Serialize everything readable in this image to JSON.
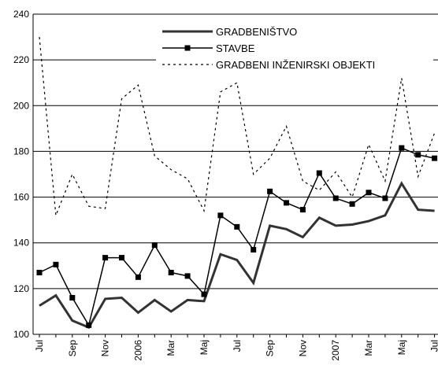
{
  "chart_data": {
    "type": "line",
    "categories": [
      "Jul",
      null,
      "Sep",
      null,
      "Nov",
      null,
      "2006",
      null,
      "Mar",
      null,
      "Maj",
      null,
      "Jul",
      null,
      "Sep",
      null,
      "Nov",
      null,
      "2007",
      null,
      "Mar",
      null,
      "Maj",
      null,
      "Jul"
    ],
    "series": [
      {
        "name": "GRADBENIŠTVO",
        "color": "#333333",
        "linewidth": 3,
        "marker": null,
        "dash": null,
        "values": [
          112.5,
          117,
          106,
          103,
          115.5,
          116,
          109.5,
          115,
          110,
          115,
          114.5,
          135,
          132.5,
          122.5,
          147.5,
          146,
          142.5,
          151,
          147.5,
          148,
          149.5,
          152,
          166,
          154.5,
          154
        ]
      },
      {
        "name": "STAVBE",
        "color": "#000000",
        "linewidth": 1.5,
        "marker": "square",
        "dash": null,
        "values": [
          127,
          130.5,
          116,
          104,
          133.5,
          133.5,
          125,
          139,
          127,
          125.5,
          117.5,
          152,
          147,
          137,
          162.5,
          157.5,
          154.5,
          170.5,
          159.5,
          157,
          162,
          159.5,
          181.5,
          178.5,
          177
        ]
      },
      {
        "name": "GRADBENI INŽENIRSKI OBJEKTI",
        "color": "#000000",
        "linewidth": 1.2,
        "marker": null,
        "dash": "3,4",
        "values": [
          230,
          152,
          170,
          156,
          155,
          203,
          209,
          178,
          172,
          168,
          154,
          206,
          210,
          170,
          177,
          191,
          167,
          163,
          171,
          160,
          183,
          167,
          212,
          169,
          188
        ]
      }
    ],
    "ylim": [
      100,
      240
    ],
    "yticks": [
      100,
      120,
      140,
      160,
      180,
      200,
      220,
      240
    ],
    "grid": true,
    "legend": "top-right"
  }
}
